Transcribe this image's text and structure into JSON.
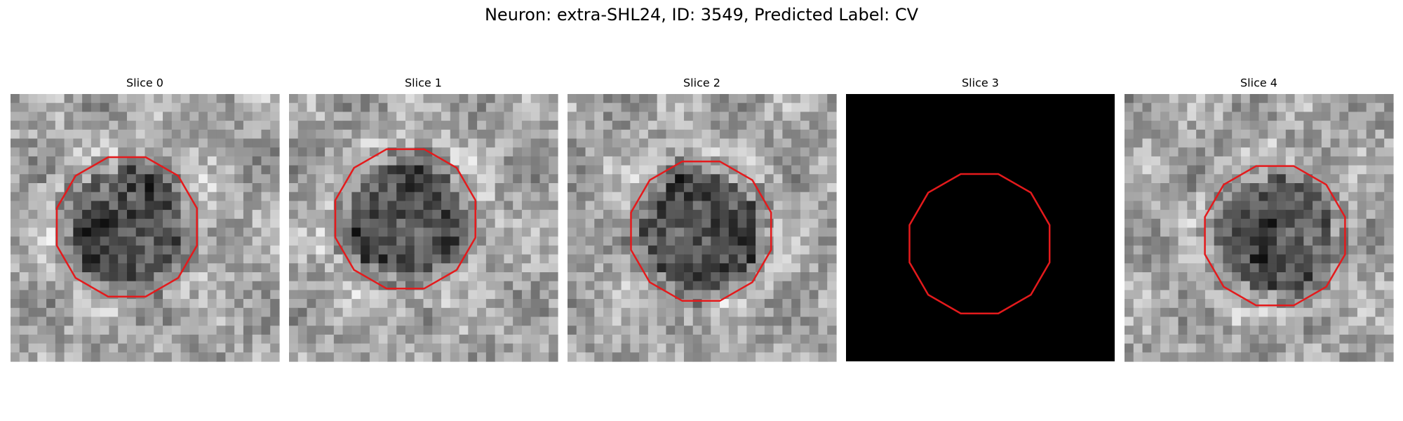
{
  "title": "Neuron: extra-SHL24, ID: 3549, Predicted Label: CV",
  "panels": [
    {
      "title": "Slice 0"
    },
    {
      "title": "Slice 1"
    },
    {
      "title": "Slice 2"
    },
    {
      "title": "Slice 3"
    },
    {
      "title": "Slice 4"
    }
  ]
}
